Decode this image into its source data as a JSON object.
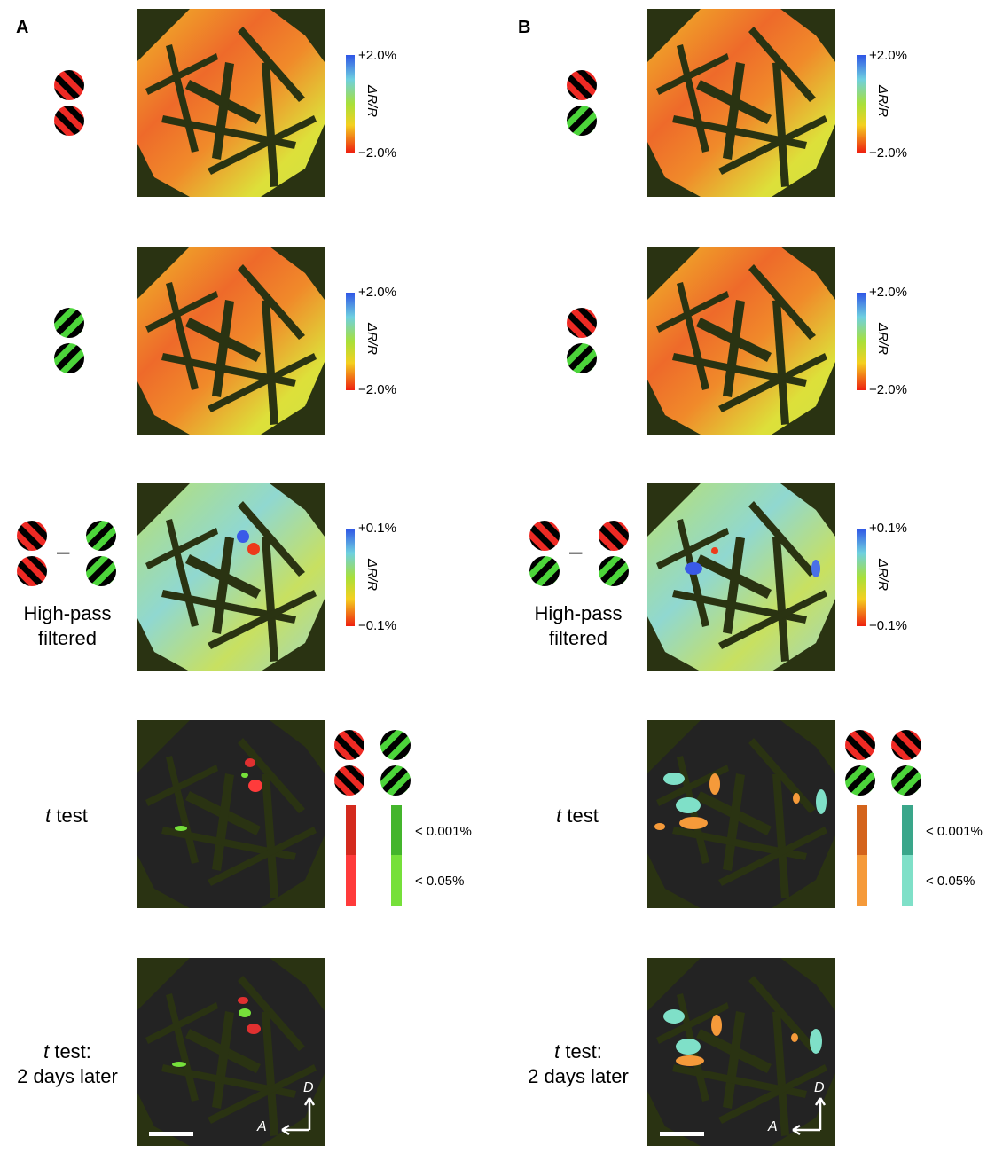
{
  "panels": [
    {
      "id": "A",
      "label": "A",
      "rows": [
        {
          "label": "",
          "colorbar": {
            "top": "+2.0%",
            "bottom": "−2.0%",
            "quantity": "ΔR/R"
          }
        },
        {
          "label": "",
          "colorbar": {
            "top": "+2.0%",
            "bottom": "−2.0%",
            "quantity": "ΔR/R"
          }
        },
        {
          "label_line1": "High-pass",
          "label_line2": "filtered",
          "minus": "–",
          "colorbar": {
            "top": "+0.1%",
            "bottom": "−0.1%",
            "quantity": "ΔR/R"
          }
        },
        {
          "label_italic": "t",
          "label_rest": " test",
          "pvalues": {
            "strong": "< 0.001%",
            "weak": "< 0.05%"
          }
        },
        {
          "label_italic": "t",
          "label_rest": " test:",
          "label_line2": "2 days later",
          "axes": {
            "dorsal": "D",
            "anterior": "A"
          }
        }
      ]
    },
    {
      "id": "B",
      "label": "B",
      "rows": [
        {
          "colorbar": {
            "top": "+2.0%",
            "bottom": "−2.0%",
            "quantity": "ΔR/R"
          }
        },
        {
          "colorbar": {
            "top": "+2.0%",
            "bottom": "−2.0%",
            "quantity": "ΔR/R"
          }
        },
        {
          "label_line1": "High-pass",
          "label_line2": "filtered",
          "minus": "–",
          "colorbar": {
            "top": "+0.1%",
            "bottom": "−0.1%",
            "quantity": "ΔR/R"
          }
        },
        {
          "label_italic": "t",
          "label_rest": " test",
          "pvalues": {
            "strong": "< 0.001%",
            "weak": "< 0.05%"
          }
        },
        {
          "label_italic": "t",
          "label_rest": " test:",
          "label_line2": "2 days later",
          "axes": {
            "dorsal": "D",
            "anterior": "A"
          }
        }
      ]
    }
  ],
  "colors": {
    "background_map": "#2a3312",
    "red_stripe": "#ee2a24",
    "green_stripe": "#4cd53a",
    "A_red_strong": "#d42a1e",
    "A_red_weak": "#ff3b3b",
    "A_green_strong": "#44b52c",
    "A_green_weak": "#76e03a",
    "B_orange_strong": "#d4641c",
    "B_orange_weak": "#f59a3a",
    "B_teal_strong": "#3aa68a",
    "B_teal_weak": "#7fe0c8"
  }
}
